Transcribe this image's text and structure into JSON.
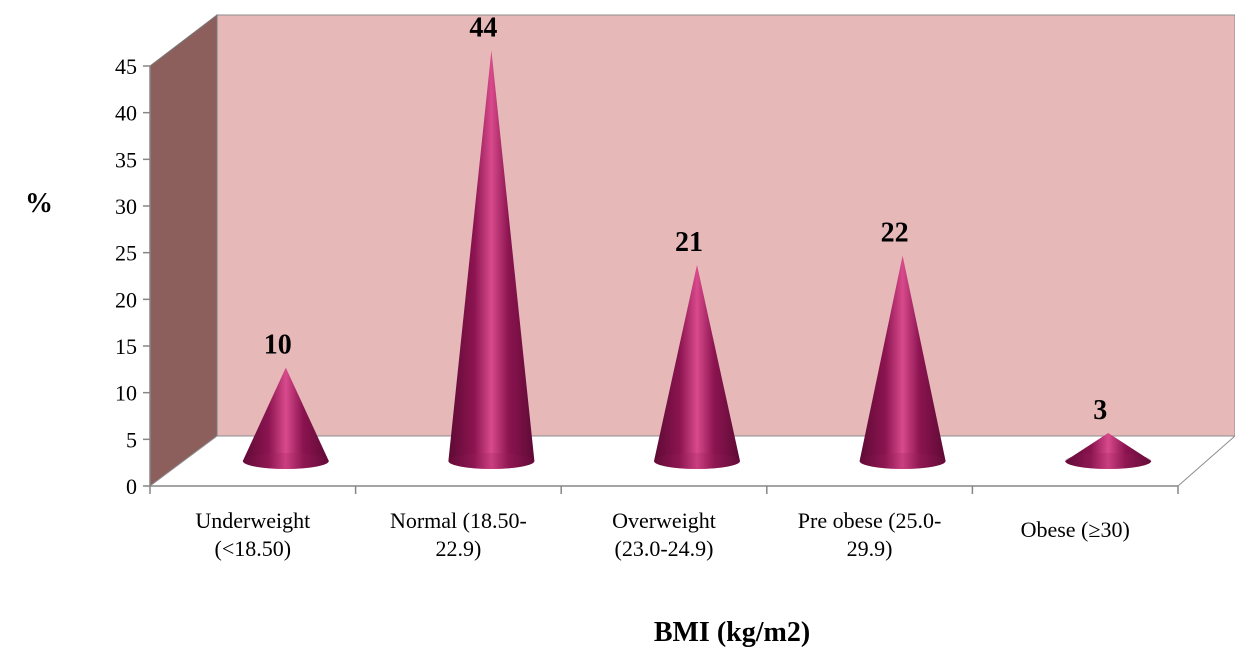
{
  "chart_data": {
    "type": "bar",
    "bar_shape": "cone",
    "view": "3d",
    "categories": [
      "Underweight (<18.50)",
      "Normal (18.50-22.9)",
      "Overweight (23.0-24.9)",
      "Pre obese (25.0-29.9)",
      "Obese (≥30)"
    ],
    "category_label_lines": [
      [
        "Underweight",
        "(<18.50)"
      ],
      [
        "Normal (18.50-",
        "22.9)"
      ],
      [
        "Overweight",
        "(23.0-24.9)"
      ],
      [
        "Pre obese (25.0-",
        "29.9)"
      ],
      [
        "Obese (≥30)"
      ]
    ],
    "values": [
      10,
      44,
      21,
      22,
      3
    ],
    "data_labels": [
      "10",
      "44",
      "21",
      "22",
      "3"
    ],
    "xlabel": "BMI (kg/m2)",
    "ylabel": "%",
    "ylim": [
      0,
      45
    ],
    "yticks": [
      0,
      5,
      10,
      15,
      20,
      25,
      30,
      35,
      40,
      45
    ],
    "legend": "none",
    "grid": false,
    "colors": {
      "cone": "#8b1450",
      "cone_highlight": "#d84a8c",
      "back_wall": "#e6b8b7",
      "side_wall": "#8c5f5d",
      "floor": "#ffffff",
      "axis": "#868686"
    }
  }
}
